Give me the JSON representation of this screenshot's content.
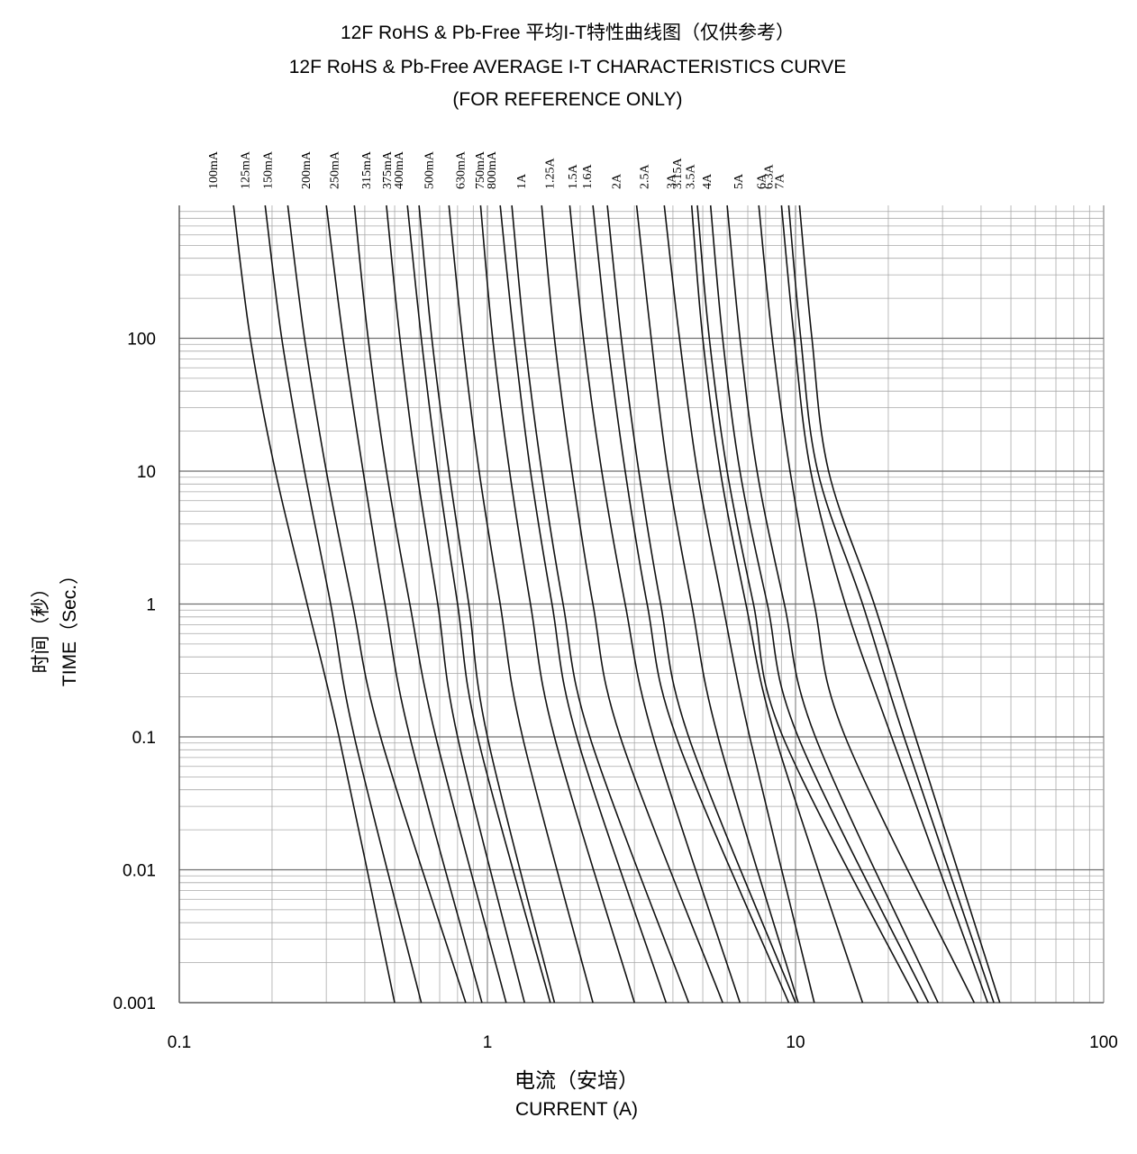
{
  "chart_data": {
    "type": "line",
    "title": "12F RoHS & Pb-Free 平均I-T特性曲线图（仅供参考）",
    "subtitle": "12F RoHS & Pb-Free  AVERAGE I-T CHARACTERISTICS CURVE",
    "note": "(FOR REFERENCE ONLY)",
    "xlabel_cn": "电流（安培）",
    "xlabel": "CURRENT (A)",
    "ylabel_cn": "时间（秒）",
    "ylabel": "TIME（Sec.）",
    "x_scale": "log",
    "y_scale": "log",
    "xlim": [
      0.1,
      100
    ],
    "ylim": [
      0.001,
      1000
    ],
    "x_ticks": [
      "0.1",
      "1",
      "10",
      "100"
    ],
    "y_ticks": [
      "0.001",
      "0.01",
      "0.1",
      "1",
      "10",
      "100"
    ],
    "grid": true,
    "series": [
      {
        "name": "100mA",
        "points": [
          [
            0.15,
            1000
          ],
          [
            0.17,
            100
          ],
          [
            0.205,
            10
          ],
          [
            0.26,
            1
          ],
          [
            0.33,
            0.1
          ],
          [
            0.5,
            0.001
          ]
        ]
      },
      {
        "name": "125mA",
        "points": [
          [
            0.19,
            1000
          ],
          [
            0.215,
            100
          ],
          [
            0.255,
            10
          ],
          [
            0.31,
            1
          ],
          [
            0.37,
            0.1
          ],
          [
            0.61,
            0.001
          ]
        ]
      },
      {
        "name": "150mA",
        "points": [
          [
            0.225,
            1000
          ],
          [
            0.255,
            100
          ],
          [
            0.3,
            10
          ],
          [
            0.365,
            1
          ],
          [
            0.45,
            0.1
          ],
          [
            0.85,
            0.001
          ]
        ]
      },
      {
        "name": "200mA",
        "points": [
          [
            0.3,
            1000
          ],
          [
            0.34,
            100
          ],
          [
            0.395,
            10
          ],
          [
            0.465,
            1
          ],
          [
            0.56,
            0.1
          ],
          [
            0.96,
            0.001
          ]
        ]
      },
      {
        "name": "250mA",
        "points": [
          [
            0.37,
            1000
          ],
          [
            0.41,
            100
          ],
          [
            0.47,
            10
          ],
          [
            0.56,
            1
          ],
          [
            0.68,
            0.1
          ],
          [
            1.15,
            0.001
          ]
        ]
      },
      {
        "name": "315mA",
        "points": [
          [
            0.47,
            1000
          ],
          [
            0.52,
            100
          ],
          [
            0.59,
            10
          ],
          [
            0.69,
            1
          ],
          [
            0.8,
            0.1
          ],
          [
            1.32,
            0.001
          ]
        ]
      },
      {
        "name": "375mA",
        "points": [
          [
            0.55,
            1000
          ],
          [
            0.61,
            100
          ],
          [
            0.69,
            10
          ],
          [
            0.8,
            1
          ],
          [
            0.93,
            0.1
          ],
          [
            1.6,
            0.001
          ]
        ]
      },
      {
        "name": "400mA",
        "points": [
          [
            0.6,
            1000
          ],
          [
            0.66,
            100
          ],
          [
            0.75,
            10
          ],
          [
            0.87,
            1
          ],
          [
            1.0,
            0.1
          ],
          [
            1.65,
            0.001
          ]
        ]
      },
      {
        "name": "500mA",
        "points": [
          [
            0.75,
            1000
          ],
          [
            0.83,
            100
          ],
          [
            0.94,
            10
          ],
          [
            1.1,
            1
          ],
          [
            1.3,
            0.1
          ],
          [
            2.2,
            0.001
          ]
        ]
      },
      {
        "name": "630mA",
        "points": [
          [
            0.95,
            1000
          ],
          [
            1.04,
            100
          ],
          [
            1.18,
            10
          ],
          [
            1.38,
            1
          ],
          [
            1.65,
            0.1
          ],
          [
            3.0,
            0.001
          ]
        ]
      },
      {
        "name": "750mA",
        "points": [
          [
            1.1,
            1000
          ],
          [
            1.22,
            100
          ],
          [
            1.38,
            10
          ],
          [
            1.62,
            1
          ],
          [
            1.95,
            0.1
          ],
          [
            3.8,
            0.001
          ]
        ]
      },
      {
        "name": "800mA",
        "points": [
          [
            1.2,
            1000
          ],
          [
            1.32,
            100
          ],
          [
            1.5,
            10
          ],
          [
            1.76,
            1
          ],
          [
            2.15,
            0.1
          ],
          [
            4.5,
            0.001
          ]
        ]
      },
      {
        "name": "1A",
        "points": [
          [
            1.5,
            1000
          ],
          [
            1.65,
            100
          ],
          [
            1.88,
            10
          ],
          [
            2.2,
            1
          ],
          [
            2.7,
            0.1
          ],
          [
            5.8,
            0.001
          ]
        ]
      },
      {
        "name": "1.25A",
        "points": [
          [
            1.85,
            1000
          ],
          [
            2.05,
            100
          ],
          [
            2.35,
            10
          ],
          [
            2.8,
            1
          ],
          [
            3.45,
            0.1
          ],
          [
            6.6,
            0.001
          ]
        ]
      },
      {
        "name": "1.5A",
        "points": [
          [
            2.2,
            1000
          ],
          [
            2.45,
            100
          ],
          [
            2.8,
            10
          ],
          [
            3.3,
            1
          ],
          [
            4.1,
            0.1
          ],
          [
            9.5,
            0.001
          ]
        ]
      },
      {
        "name": "1.6A",
        "points": [
          [
            2.45,
            1000
          ],
          [
            2.72,
            100
          ],
          [
            3.1,
            10
          ],
          [
            3.65,
            1
          ],
          [
            4.5,
            0.1
          ],
          [
            10,
            0.001
          ]
        ]
      },
      {
        "name": "2A",
        "points": [
          [
            3.05,
            1000
          ],
          [
            3.4,
            100
          ],
          [
            3.85,
            10
          ],
          [
            4.6,
            1
          ],
          [
            5.6,
            0.1
          ],
          [
            10.2,
            0.001
          ]
        ]
      },
      {
        "name": "2.5A",
        "points": [
          [
            3.75,
            1000
          ],
          [
            4.2,
            100
          ],
          [
            4.8,
            10
          ],
          [
            5.8,
            1
          ],
          [
            7.1,
            0.1
          ],
          [
            11.5,
            0.001
          ]
        ]
      },
      {
        "name": "3A",
        "points": [
          [
            4.6,
            1000
          ],
          [
            5.0,
            100
          ],
          [
            5.7,
            10
          ],
          [
            6.9,
            1
          ],
          [
            8.6,
            0.1
          ],
          [
            16.5,
            0.001
          ]
        ]
      },
      {
        "name": "3.15A",
        "points": [
          [
            4.8,
            1000
          ],
          [
            5.25,
            100
          ],
          [
            6.0,
            10
          ],
          [
            7.3,
            1
          ],
          [
            9.1,
            0.1
          ],
          [
            25,
            0.001
          ]
        ]
      },
      {
        "name": "3.5A",
        "points": [
          [
            5.3,
            1000
          ],
          [
            5.8,
            100
          ],
          [
            6.6,
            10
          ],
          [
            8.1,
            1
          ],
          [
            10.2,
            0.1
          ],
          [
            27,
            0.001
          ]
        ]
      },
      {
        "name": "4A",
        "points": [
          [
            6.0,
            1000
          ],
          [
            6.6,
            100
          ],
          [
            7.5,
            10
          ],
          [
            9.2,
            1
          ],
          [
            11.6,
            0.1
          ],
          [
            29,
            0.001
          ]
        ]
      },
      {
        "name": "5A",
        "points": [
          [
            7.6,
            1000
          ],
          [
            8.4,
            100
          ],
          [
            9.6,
            10
          ],
          [
            11.5,
            1
          ],
          [
            14.5,
            0.1
          ],
          [
            38,
            0.001
          ]
        ]
      },
      {
        "name": "6A",
        "points": [
          [
            9.0,
            1000
          ],
          [
            9.9,
            100
          ],
          [
            11.2,
            10
          ],
          [
            14.5,
            1
          ],
          [
            20.5,
            0.1
          ],
          [
            42,
            0.001
          ]
        ]
      },
      {
        "name": "6.3A",
        "points": [
          [
            9.5,
            1000
          ],
          [
            10.4,
            100
          ],
          [
            11.8,
            10
          ],
          [
            16.5,
            1
          ],
          [
            22.5,
            0.1
          ],
          [
            44,
            0.001
          ]
        ]
      },
      {
        "name": "7A",
        "points": [
          [
            10.3,
            1000
          ],
          [
            11.3,
            100
          ],
          [
            12.8,
            10
          ],
          [
            18.0,
            1
          ],
          [
            24.5,
            0.1
          ],
          [
            46,
            0.001
          ]
        ]
      }
    ]
  }
}
